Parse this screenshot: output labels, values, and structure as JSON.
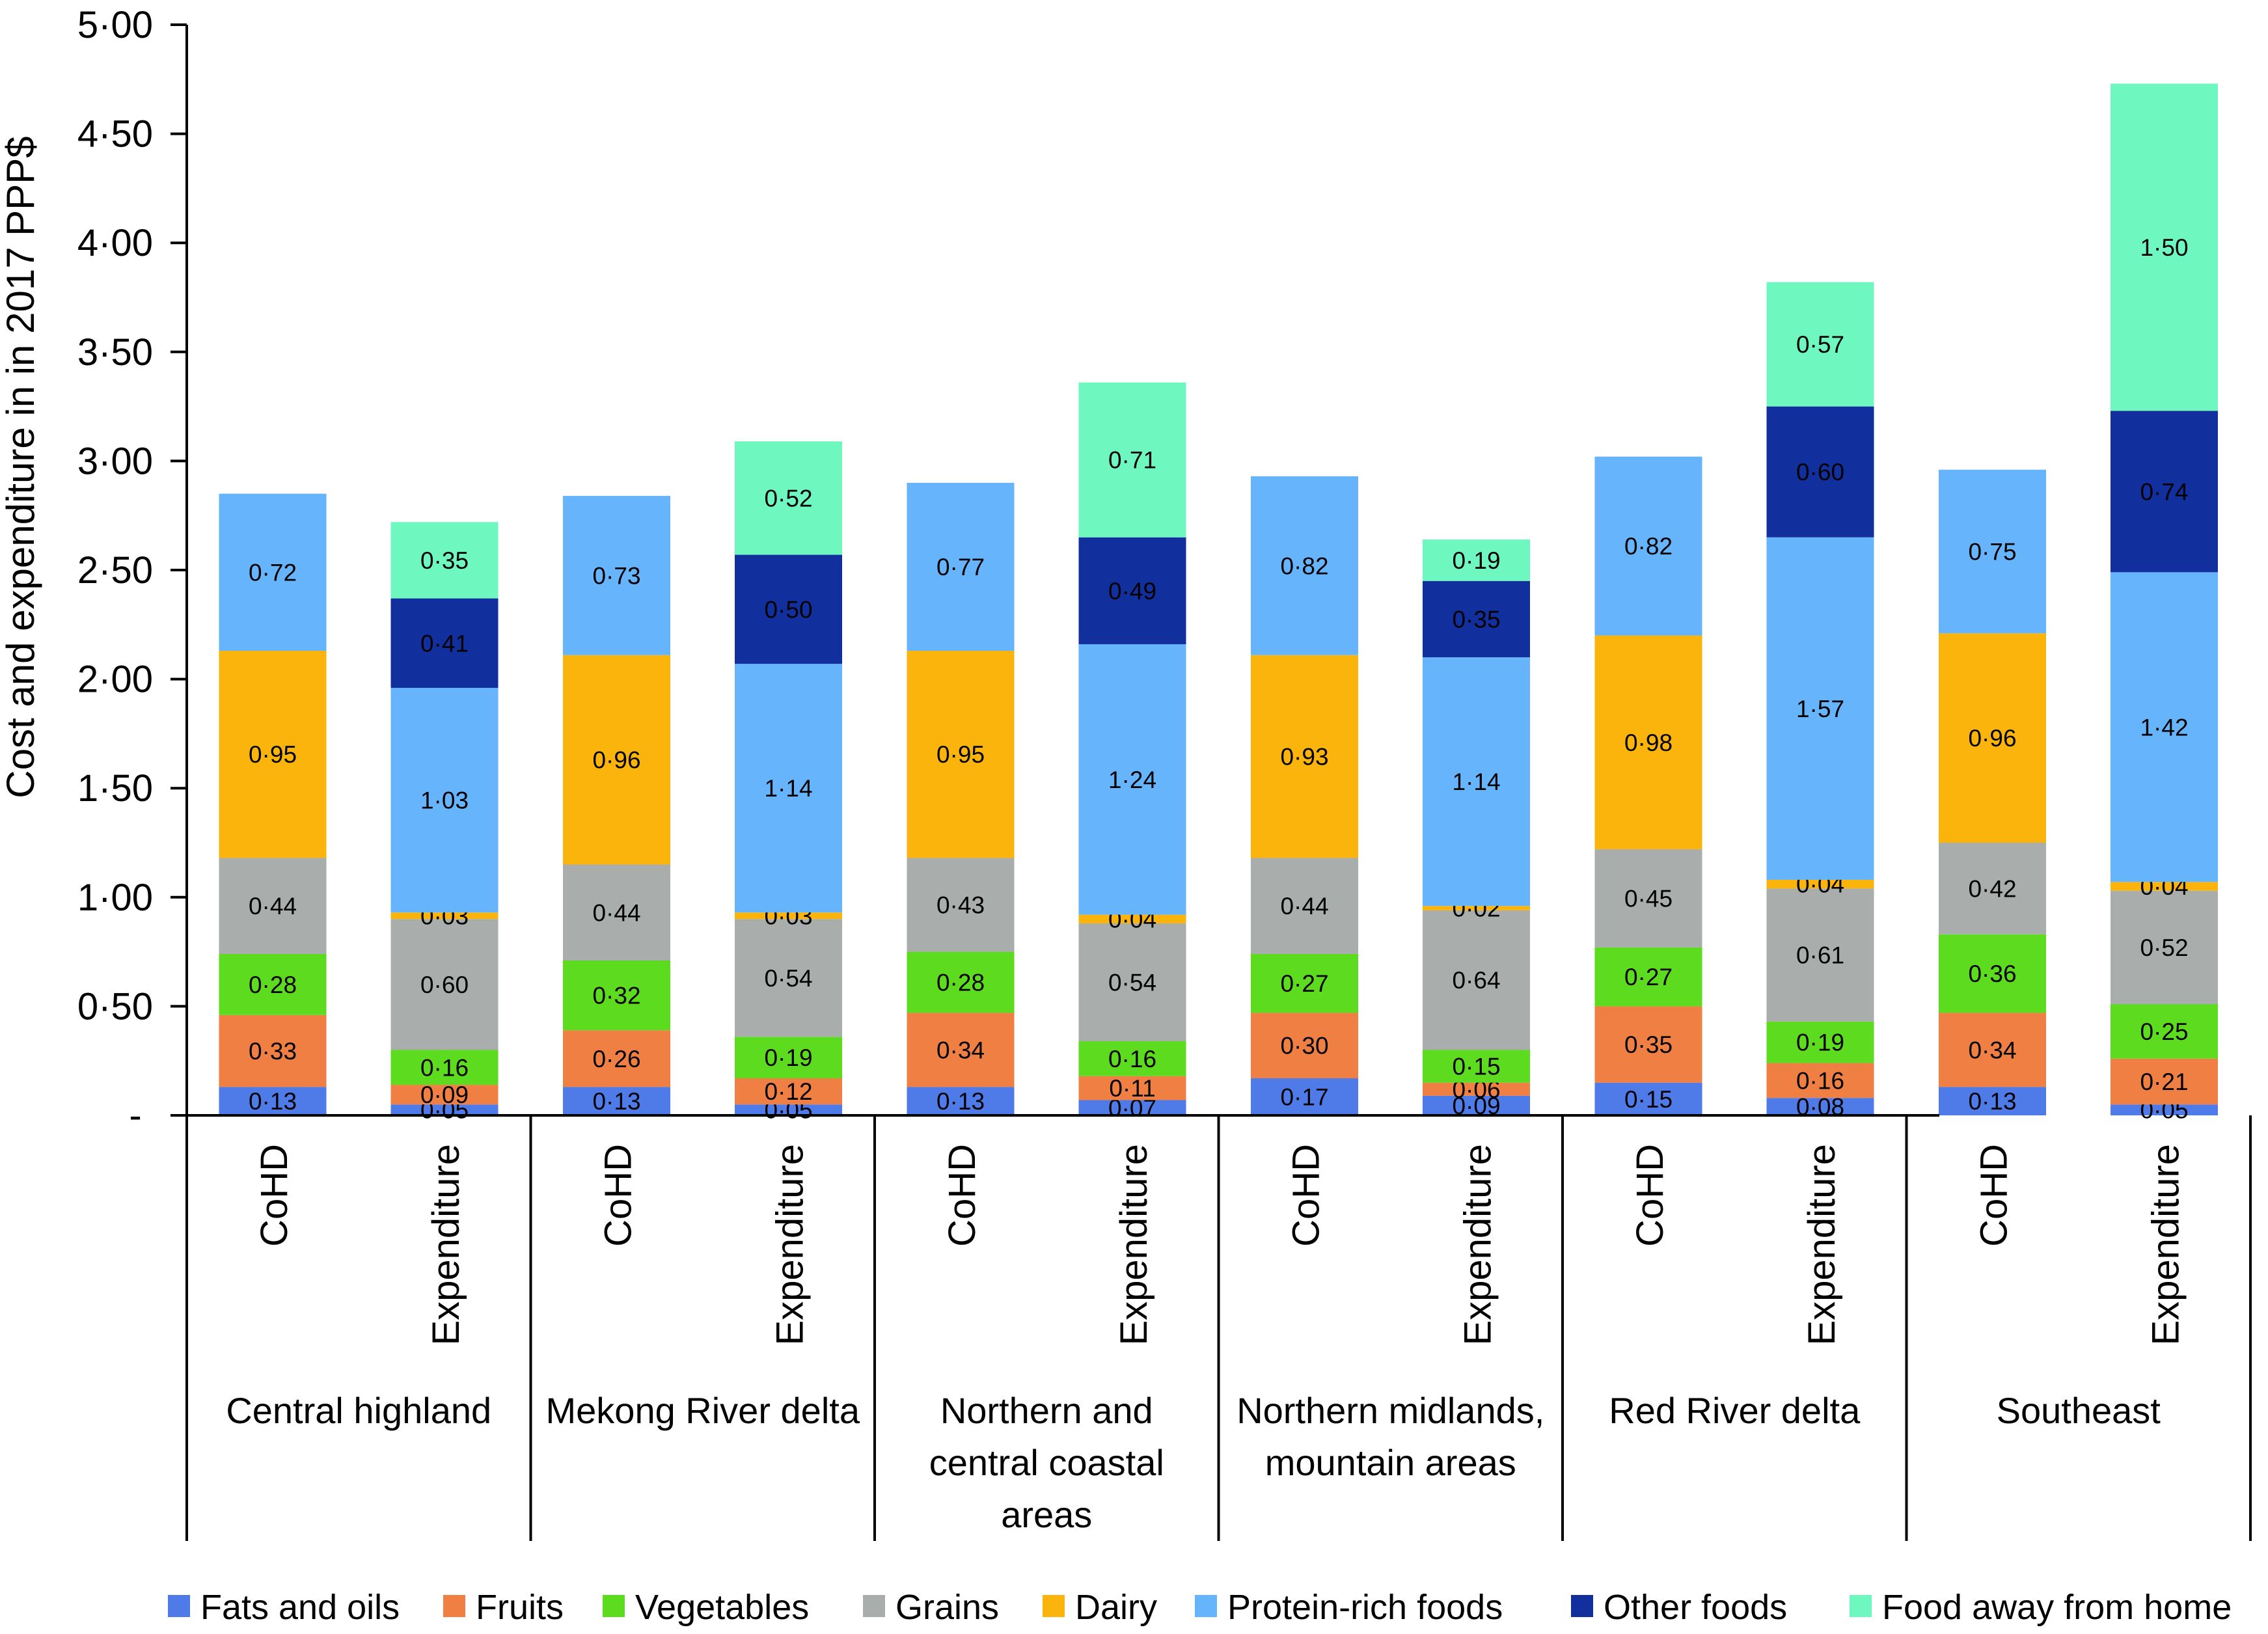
{
  "chart_data": {
    "type": "stacked-bar",
    "ylabel": "Cost and expenditure in in 2017 PPP$",
    "ylim": [
      0,
      5
    ],
    "y_ticks": [
      "-",
      "0·50",
      "1·00",
      "1·50",
      "2·00",
      "2·50",
      "3·00",
      "3·50",
      "4·00",
      "4·50",
      "5·00"
    ],
    "legend_position": "bottom",
    "series": [
      {
        "name": "Fats and oils",
        "color": "#4F7BE9"
      },
      {
        "name": "Fruits",
        "color": "#F07F43"
      },
      {
        "name": "Vegetables",
        "color": "#5CDB1F"
      },
      {
        "name": "Grains",
        "color": "#A9ADAB"
      },
      {
        "name": "Dairy",
        "color": "#FBB40B"
      },
      {
        "name": "Protein-rich foods",
        "color": "#66B5FC"
      },
      {
        "name": "Other foods",
        "color": "#12309D"
      },
      {
        "name": "Food away from home",
        "color": "#6EF8C0"
      }
    ],
    "groups": [
      {
        "name": "Central highland",
        "name_lines": [
          "Central highland"
        ],
        "bars": [
          {
            "label": "CoHD",
            "values": [
              0.13,
              0.33,
              0.28,
              0.44,
              0.95,
              0.72,
              null,
              null
            ],
            "labels": [
              "0·13",
              "0·33",
              "0·28",
              "0·44",
              "0·95",
              "0·72",
              null,
              null
            ]
          },
          {
            "label": "Expenditure",
            "values": [
              0.05,
              0.09,
              0.16,
              0.6,
              0.03,
              1.03,
              0.41,
              0.35
            ],
            "labels": [
              "0·05",
              "0·09",
              "0·16",
              "0·60",
              "0·03",
              "1·03",
              "0·41",
              "0·35"
            ]
          }
        ]
      },
      {
        "name": "Mekong River delta",
        "name_lines": [
          "Mekong River delta"
        ],
        "bars": [
          {
            "label": "CoHD",
            "values": [
              0.13,
              0.26,
              0.32,
              0.44,
              0.96,
              0.73,
              null,
              null
            ],
            "labels": [
              "0·13",
              "0·26",
              "0·32",
              "0·44",
              "0·96",
              "0·73",
              null,
              null
            ]
          },
          {
            "label": "Expenditure",
            "values": [
              0.05,
              0.12,
              0.19,
              0.54,
              0.03,
              1.14,
              0.5,
              0.52
            ],
            "labels": [
              "0·05",
              "0·12",
              "0·19",
              "0·54",
              "0·03",
              "1·14",
              "0·50",
              "0·52"
            ]
          }
        ]
      },
      {
        "name": "Northern and central coastal areas",
        "name_lines": [
          "Northern and",
          "central coastal",
          "areas"
        ],
        "bars": [
          {
            "label": "CoHD",
            "values": [
              0.13,
              0.34,
              0.28,
              0.43,
              0.95,
              0.77,
              null,
              null
            ],
            "labels": [
              "0·13",
              "0·34",
              "0·28",
              "0·43",
              "0·95",
              "0·77",
              null,
              null
            ]
          },
          {
            "label": "Expenditure",
            "values": [
              0.07,
              0.11,
              0.16,
              0.54,
              0.04,
              1.24,
              0.49,
              0.71
            ],
            "labels": [
              "0·07",
              "0·11",
              "0·16",
              "0·54",
              "0·04",
              "1·24",
              "0·49",
              "0·71"
            ]
          }
        ]
      },
      {
        "name": "Northern midlands, mountain areas",
        "name_lines": [
          "Northern midlands,",
          "mountain areas"
        ],
        "bars": [
          {
            "label": "CoHD",
            "values": [
              0.17,
              0.3,
              0.27,
              0.44,
              0.93,
              0.82,
              null,
              null
            ],
            "labels": [
              "0·17",
              "0·30",
              "0·27",
              "0·44",
              "0·93",
              "0·82",
              null,
              null
            ]
          },
          {
            "label": "Expenditure",
            "values": [
              0.09,
              0.06,
              0.15,
              0.64,
              0.02,
              1.14,
              0.35,
              0.19
            ],
            "labels": [
              "0·09",
              "0·06",
              "0·15",
              "0·64",
              "0·02",
              "1·14",
              "0·35",
              "0·19"
            ]
          }
        ]
      },
      {
        "name": "Red River delta",
        "name_lines": [
          "Red River delta"
        ],
        "bars": [
          {
            "label": "CoHD",
            "values": [
              0.15,
              0.35,
              0.27,
              0.45,
              0.98,
              0.82,
              null,
              null
            ],
            "labels": [
              "0·15",
              "0·35",
              "0·27",
              "0·45",
              "0·98",
              "0·82",
              null,
              null
            ]
          },
          {
            "label": "Expenditure",
            "values": [
              0.08,
              0.16,
              0.19,
              0.61,
              0.04,
              1.57,
              0.6,
              0.57
            ],
            "labels": [
              "0·08",
              "0·16",
              "0·19",
              "0·61",
              "0·04",
              "1·57",
              "0·60",
              "0·57"
            ]
          }
        ]
      },
      {
        "name": "Southeast",
        "name_lines": [
          "Southeast"
        ],
        "bars": [
          {
            "label": "CoHD",
            "values": [
              0.13,
              0.34,
              0.36,
              0.42,
              0.96,
              0.75,
              null,
              null
            ],
            "labels": [
              "0·13",
              "0·34",
              "0·36",
              "0·42",
              "0·96",
              "0·75",
              null,
              null
            ]
          },
          {
            "label": "Expenditure",
            "values": [
              0.05,
              0.21,
              0.25,
              0.52,
              0.04,
              1.42,
              0.74,
              1.5
            ],
            "labels": [
              "0·05",
              "0·21",
              "0·25",
              "0·52",
              "0·04",
              "1·42",
              "0·74",
              "1·50"
            ]
          }
        ]
      }
    ]
  }
}
